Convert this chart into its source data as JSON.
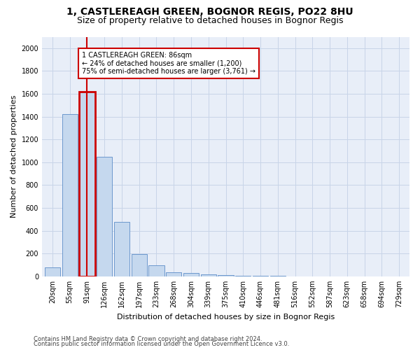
{
  "title": "1, CASTLEREAGH GREEN, BOGNOR REGIS, PO22 8HU",
  "subtitle": "Size of property relative to detached houses in Bognor Regis",
  "xlabel": "Distribution of detached houses by size in Bognor Regis",
  "ylabel": "Number of detached properties",
  "footnote1": "Contains HM Land Registry data © Crown copyright and database right 2024.",
  "footnote2": "Contains public sector information licensed under the Open Government Licence v3.0.",
  "categories": [
    "20sqm",
    "55sqm",
    "91sqm",
    "126sqm",
    "162sqm",
    "197sqm",
    "233sqm",
    "268sqm",
    "304sqm",
    "339sqm",
    "375sqm",
    "410sqm",
    "446sqm",
    "481sqm",
    "516sqm",
    "552sqm",
    "587sqm",
    "623sqm",
    "658sqm",
    "694sqm",
    "729sqm"
  ],
  "values": [
    80,
    1420,
    1620,
    1050,
    475,
    195,
    100,
    38,
    28,
    20,
    12,
    8,
    4,
    2,
    1,
    1,
    0,
    0,
    0,
    0,
    0
  ],
  "bar_color": "#c5d8ee",
  "bar_edge_color": "#5b8cc8",
  "highlight_bar_index": 2,
  "annotation_text": "1 CASTLEREAGH GREEN: 86sqm\n← 24% of detached houses are smaller (1,200)\n75% of semi-detached houses are larger (3,761) →",
  "annotation_box_facecolor": "#ffffff",
  "annotation_box_edgecolor": "#cc0000",
  "ylim": [
    0,
    2100
  ],
  "yticks": [
    0,
    200,
    400,
    600,
    800,
    1000,
    1200,
    1400,
    1600,
    1800,
    2000
  ],
  "grid_color": "#c8d4e8",
  "bg_color": "#e8eef8",
  "title_fontsize": 10,
  "subtitle_fontsize": 9,
  "ylabel_fontsize": 8,
  "xlabel_fontsize": 8,
  "tick_fontsize": 7,
  "footnote_fontsize": 6
}
